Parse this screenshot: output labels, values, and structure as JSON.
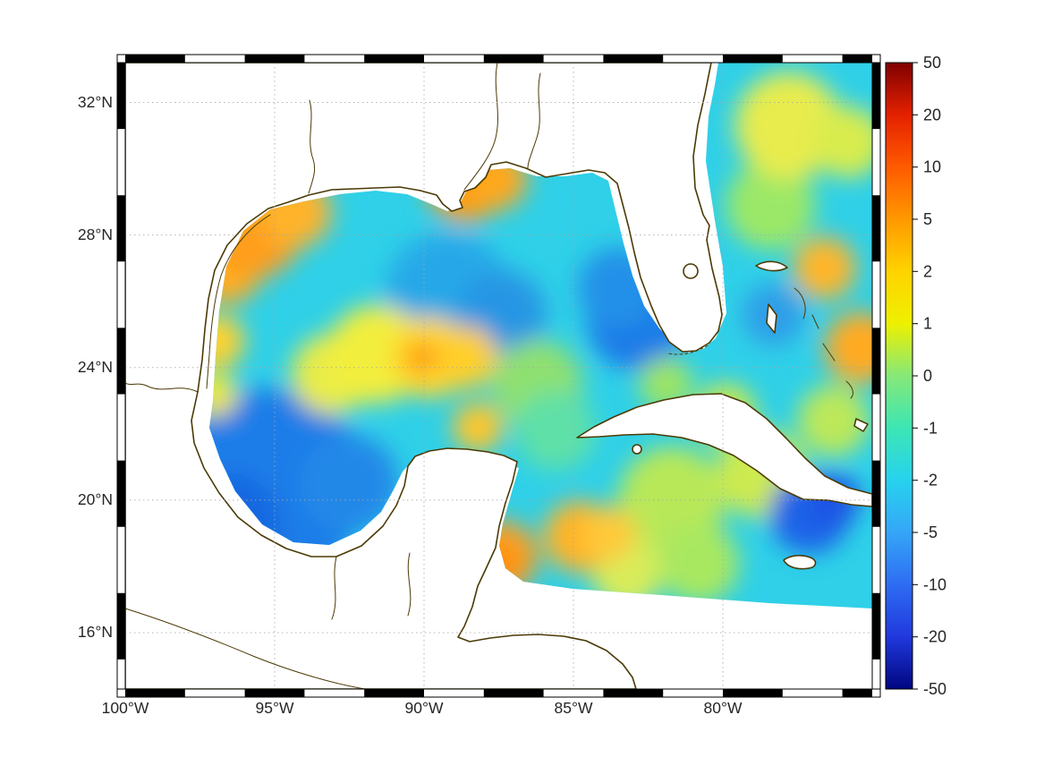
{
  "figure": {
    "background_color": "#ffffff",
    "title": "",
    "description": "Gridded anomaly field over the Gulf of Mexico with zebra map frame and nonlinear diverging colorbar"
  },
  "axes": {
    "lon_range": [
      -100,
      -75
    ],
    "lat_range": [
      14.3,
      33.2
    ],
    "x_ticks": [
      {
        "label": "100°W",
        "lon": -100
      },
      {
        "label": "95°W",
        "lon": -95
      },
      {
        "label": "90°W",
        "lon": -90
      },
      {
        "label": "85°W",
        "lon": -85
      },
      {
        "label": "80°W",
        "lon": -80
      }
    ],
    "y_ticks": [
      {
        "label": "32°N",
        "lat": 32
      },
      {
        "label": "28°N",
        "lat": 28
      },
      {
        "label": "24°N",
        "lat": 24
      },
      {
        "label": "20°N",
        "lat": 20
      },
      {
        "label": "16°N",
        "lat": 16
      }
    ],
    "grid": true,
    "grid_style": "dotted",
    "grid_color": "#a8a8a8",
    "frame_style": "black-white zebra border"
  },
  "colorbar": {
    "position": "right",
    "tick_labels": [
      "50",
      "20",
      "10",
      "5",
      "2",
      "1",
      "0",
      "-1",
      "-2",
      "-5",
      "-10",
      "-20",
      "-50"
    ],
    "stops": [
      {
        "label": "50",
        "color": "#7f0000"
      },
      {
        "label": "20",
        "color": "#e42100"
      },
      {
        "label": "10",
        "color": "#ff5a00"
      },
      {
        "label": "5",
        "color": "#ff9800"
      },
      {
        "label": "2",
        "color": "#ffd300"
      },
      {
        "label": "1",
        "color": "#eef000"
      },
      {
        "label": "0",
        "color": "#86e878"
      },
      {
        "label": "-1",
        "color": "#3ce6b4"
      },
      {
        "label": "-2",
        "color": "#27d2ee"
      },
      {
        "label": "-5",
        "color": "#35a6f7"
      },
      {
        "label": "-10",
        "color": "#2e6cf2"
      },
      {
        "label": "-20",
        "color": "#2138dd"
      },
      {
        "label": "-50",
        "color": "#00067f"
      }
    ],
    "border_color": "#000000"
  },
  "map": {
    "region": "Gulf of Mexico, Florida, Cuba, Yucatan, Bahamas, northwest Caribbean",
    "coastline_color": "#4b3a05",
    "land_color": "#ffffff",
    "no_data_color": "#ffffff",
    "base_field_color": "#2fd0e8",
    "base_field_value": -1.5
  },
  "chart_data": {
    "type": "heatmap",
    "xlabel": "",
    "ylabel": "",
    "x_range": [
      -100,
      -75
    ],
    "y_range": [
      14.3,
      33.2
    ],
    "colorscale_values": [
      50,
      20,
      10,
      5,
      2,
      1,
      0,
      -1,
      -2,
      -5,
      -10,
      -20,
      -50
    ],
    "background_value": -1.5,
    "features": [
      {
        "name": "caribbean-green-wash",
        "lon": -81.7,
        "lat": 20.0,
        "value": 0,
        "color": "#b8e858",
        "radius_px": 60
      },
      {
        "name": "bahamas-green-wash",
        "lon": -78.7,
        "lat": 20.8,
        "value": 0.5,
        "color": "#cdea50",
        "radius_px": 50
      },
      {
        "name": "atlantic-green-wash",
        "lon": -78.4,
        "lat": 28.9,
        "value": 0,
        "color": "#9be868",
        "radius_px": 50
      },
      {
        "name": "atlantic-yellow-north",
        "lon": -77.8,
        "lat": 31.3,
        "value": 1,
        "color": "#e8ec4e",
        "radius_px": 60
      },
      {
        "name": "atlantic-yellow-ne-corner",
        "lon": -75.8,
        "lat": 30.8,
        "value": 1,
        "color": "#d8ec4e",
        "radius_px": 40
      },
      {
        "name": "west-gulf-deep-blue",
        "lon": -95.2,
        "lat": 20.4,
        "value": -6,
        "color": "#1b7de8",
        "radius_px": 110
      },
      {
        "name": "bay-of-campeche-blue",
        "lon": -96.6,
        "lat": 19.2,
        "value": -8,
        "color": "#1668e0",
        "radius_px": 60
      },
      {
        "name": "south-gulf-blue",
        "lon": -92.5,
        "lat": 20.5,
        "value": -5,
        "color": "#2488e8",
        "radius_px": 55
      },
      {
        "name": "central-gulf-blue",
        "lon": -89.2,
        "lat": 26.2,
        "value": -4,
        "color": "#28a8e8",
        "radius_px": 70
      },
      {
        "name": "east-central-blue",
        "lon": -87.4,
        "lat": 25.6,
        "value": -4,
        "color": "#2596e4",
        "radius_px": 50
      },
      {
        "name": "florida-strait-blue",
        "lon": -82.9,
        "lat": 25.4,
        "value": -6,
        "color": "#1d7ce8",
        "radius_px": 55
      },
      {
        "name": "west-florida-blue",
        "lon": -83.5,
        "lat": 26.4,
        "value": -5,
        "color": "#2390e8",
        "radius_px": 45
      },
      {
        "name": "bahamas-blue",
        "lon": -78.3,
        "lat": 25.6,
        "value": -4,
        "color": "#2f9ee8",
        "radius_px": 35
      },
      {
        "name": "se-caribbean-blue",
        "lon": -77.1,
        "lat": 19.6,
        "value": -7,
        "color": "#1f63e8",
        "radius_px": 45
      },
      {
        "name": "se-caribbean-blue-core",
        "lon": -76.3,
        "lat": 20.0,
        "value": -8,
        "color": "#1a55e4",
        "radius_px": 30
      },
      {
        "name": "midgulf-yellow-west",
        "lon": -93.1,
        "lat": 23.8,
        "value": 1,
        "color": "#e8ec48",
        "radius_px": 45
      },
      {
        "name": "midgulf-yellow",
        "lon": -91.6,
        "lat": 24.4,
        "value": 1,
        "color": "#f2ee3e",
        "radius_px": 55
      },
      {
        "name": "midgulf-yellow-core",
        "lon": -89.8,
        "lat": 24.3,
        "value": 1.5,
        "color": "#ffd92e",
        "radius_px": 45
      },
      {
        "name": "midgulf-yellow-east",
        "lon": -88.6,
        "lat": 24.3,
        "value": 1.5,
        "color": "#ffcf2a",
        "radius_px": 35
      },
      {
        "name": "campeche-bank-yellow",
        "lon": -88.2,
        "lat": 22.2,
        "value": 1.5,
        "color": "#ffc62a",
        "radius_px": 28
      },
      {
        "name": "loop-current-green",
        "lon": -86.2,
        "lat": 23.5,
        "value": 0,
        "color": "#8fe070",
        "radius_px": 50
      },
      {
        "name": "loop-current-teal",
        "lon": -85.6,
        "lat": 22.1,
        "value": -0.5,
        "color": "#5fe0a8",
        "radius_px": 45
      },
      {
        "name": "honduras-green",
        "lon": -83.2,
        "lat": 17.8,
        "value": 0.5,
        "color": "#d8ec5a",
        "radius_px": 40
      },
      {
        "name": "cayman-green",
        "lon": -80.8,
        "lat": 18.1,
        "value": 0,
        "color": "#a8e860",
        "radius_px": 45
      },
      {
        "name": "texas-orange-south",
        "lon": -96.6,
        "lat": 27.0,
        "value": 2.5,
        "color": "#ffad24",
        "radius_px": 40
      },
      {
        "name": "texas-orange",
        "lon": -95.7,
        "lat": 28.2,
        "value": 3,
        "color": "#ff9e1c",
        "radius_px": 55
      },
      {
        "name": "louisiana-orange",
        "lon": -94.3,
        "lat": 28.7,
        "value": 2.5,
        "color": "#ffb32a",
        "radius_px": 40
      },
      {
        "name": "mississippi-orange",
        "lon": -88.6,
        "lat": 29.6,
        "value": 3,
        "color": "#ff9d18",
        "radius_px": 45
      },
      {
        "name": "alabama-orange",
        "lon": -87.6,
        "lat": 29.7,
        "value": 3,
        "color": "#ffa81e",
        "radius_px": 35
      },
      {
        "name": "midgulf-orange-spot",
        "lon": -90.1,
        "lat": 24.3,
        "value": 2.5,
        "color": "#ff9a10",
        "radius_px": 18
      },
      {
        "name": "yucatan-ne-orange",
        "lon": -87.4,
        "lat": 18.3,
        "value": 3,
        "color": "#ff9d1a",
        "radius_px": 40
      },
      {
        "name": "yucatan-ne-orange-core",
        "lon": -87.7,
        "lat": 17.9,
        "value": 3.5,
        "color": "#ff8c0e",
        "radius_px": 25
      },
      {
        "name": "caribbean-orange",
        "lon": -84.8,
        "lat": 18.9,
        "value": 2.5,
        "color": "#ffb428",
        "radius_px": 40
      },
      {
        "name": "caribbean-orange-east",
        "lon": -83.8,
        "lat": 19.0,
        "value": 2,
        "color": "#ffc93a",
        "radius_px": 30
      },
      {
        "name": "bahamas-orange",
        "lon": -76.6,
        "lat": 27.0,
        "value": 2,
        "color": "#ffb62a",
        "radius_px": 35
      },
      {
        "name": "atlantic-orange-edge",
        "lon": -75.4,
        "lat": 24.6,
        "value": 2.5,
        "color": "#ffaa22",
        "radius_px": 40
      },
      {
        "name": "cuba-north-green",
        "lon": -79.9,
        "lat": 22.6,
        "value": 0.5,
        "color": "#c6e84e",
        "radius_px": 35
      },
      {
        "name": "crooked-island-green",
        "lon": -76.3,
        "lat": 22.4,
        "value": 0.5,
        "color": "#bce85a",
        "radius_px": 40
      },
      {
        "name": "west-edge-yellow",
        "lon": -96.9,
        "lat": 24.8,
        "value": 1.5,
        "color": "#ffd22e",
        "radius_px": 30
      },
      {
        "name": "west-edge-yellow-south",
        "lon": -97.0,
        "lat": 23.2,
        "value": 1,
        "color": "#f0e83a",
        "radius_px": 25
      },
      {
        "name": "straits-green",
        "lon": -81.9,
        "lat": 23.5,
        "value": 0,
        "color": "#9ce465",
        "radius_px": 30
      }
    ]
  }
}
